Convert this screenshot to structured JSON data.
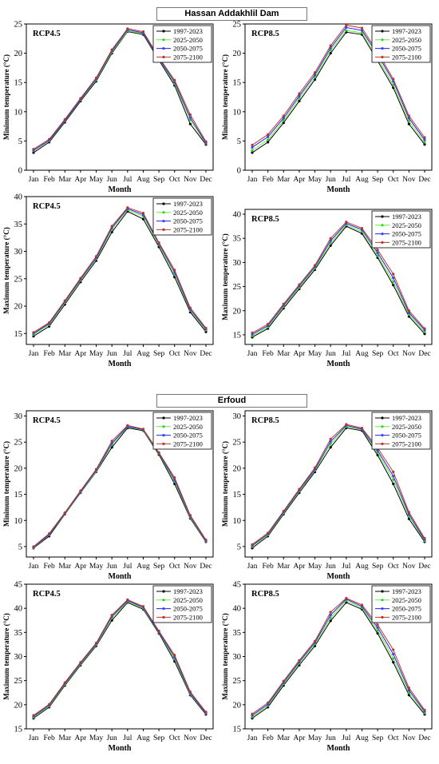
{
  "sections": [
    {
      "title": "Hassan Addakhlil Dam"
    },
    {
      "title": "Erfoud"
    }
  ],
  "chart_data": [
    {
      "type": "line",
      "title": "RCP4.5",
      "xlabel": "Month",
      "ylabel": "Minimum temperature (°C)",
      "categories": [
        "Jan",
        "Feb",
        "Mar",
        "Apr",
        "May",
        "Jun",
        "Jul",
        "Aug",
        "Sep",
        "Oct",
        "Nov",
        "Dec"
      ],
      "ylim": [
        0,
        25
      ],
      "yticks": [
        0,
        5,
        10,
        15,
        20,
        25
      ],
      "legend_position": "top-right",
      "series": [
        {
          "name": "1997-2023",
          "values": [
            3.0,
            4.8,
            8.2,
            11.8,
            15.2,
            20.0,
            23.7,
            23.2,
            18.8,
            14.5,
            7.9,
            4.4
          ]
        },
        {
          "name": "2025-2050",
          "values": [
            3.3,
            5.0,
            8.4,
            12.0,
            15.4,
            20.2,
            23.8,
            23.4,
            19.0,
            14.8,
            8.6,
            4.6
          ]
        },
        {
          "name": "2050-2075",
          "values": [
            3.4,
            5.1,
            8.5,
            12.1,
            15.6,
            20.4,
            24.0,
            23.5,
            19.1,
            15.1,
            9.0,
            4.7
          ]
        },
        {
          "name": "2075-2100",
          "values": [
            3.6,
            5.3,
            8.7,
            12.3,
            15.8,
            20.6,
            24.2,
            23.7,
            19.3,
            15.4,
            9.5,
            4.9
          ]
        }
      ]
    },
    {
      "type": "line",
      "title": "RCP8.5",
      "xlabel": "Month",
      "ylabel": "Minimum temperature (°C)",
      "categories": [
        "Jan",
        "Feb",
        "Mar",
        "Apr",
        "May",
        "Jun",
        "Jul",
        "Aug",
        "Sep",
        "Oct",
        "Nov",
        "Dec"
      ],
      "ylim": [
        0,
        25
      ],
      "yticks": [
        0,
        5,
        10,
        15,
        20,
        25
      ],
      "legend_position": "top-right",
      "series": [
        {
          "name": "1997-2023",
          "values": [
            3.0,
            4.8,
            8.1,
            11.8,
            15.5,
            20.0,
            23.6,
            23.2,
            18.7,
            14.1,
            7.9,
            4.4
          ]
        },
        {
          "name": "2025-2050",
          "values": [
            3.4,
            5.2,
            8.5,
            12.3,
            15.9,
            20.5,
            23.9,
            23.5,
            19.2,
            14.6,
            8.4,
            4.8
          ]
        },
        {
          "name": "2050-2075",
          "values": [
            3.9,
            5.7,
            8.9,
            12.7,
            16.3,
            20.9,
            24.4,
            23.9,
            19.8,
            15.2,
            8.9,
            5.2
          ]
        },
        {
          "name": "2075-2100",
          "values": [
            4.3,
            6.1,
            9.3,
            13.1,
            16.7,
            21.3,
            24.8,
            24.3,
            20.2,
            15.6,
            9.3,
            5.6
          ]
        }
      ]
    },
    {
      "type": "line",
      "title": "RCP4.5",
      "xlabel": "Month",
      "ylabel": "Maximum temperature (°C)",
      "categories": [
        "Jan",
        "Feb",
        "Mar",
        "Apr",
        "May",
        "Jun",
        "Jul",
        "Aug",
        "Sep",
        "Oct",
        "Nov",
        "Dec"
      ],
      "ylim": [
        13,
        40
      ],
      "yticks": [
        15,
        20,
        25,
        30,
        35,
        40
      ],
      "legend_position": "top-right",
      "series": [
        {
          "name": "1997-2023",
          "values": [
            14.5,
            16.3,
            20.3,
            24.4,
            28.3,
            33.5,
            37.3,
            35.9,
            30.8,
            25.3,
            18.9,
            15.3
          ]
        },
        {
          "name": "2025-2050",
          "values": [
            14.8,
            16.6,
            20.6,
            24.7,
            28.6,
            34.0,
            37.6,
            36.4,
            31.2,
            25.8,
            19.2,
            15.6
          ]
        },
        {
          "name": "2050-2075",
          "values": [
            15.0,
            16.8,
            20.8,
            24.9,
            28.8,
            34.3,
            37.8,
            36.7,
            31.4,
            26.2,
            19.4,
            15.8
          ]
        },
        {
          "name": "2075-2100",
          "values": [
            15.2,
            17.0,
            21.0,
            25.1,
            29.1,
            34.6,
            38.0,
            37.0,
            31.6,
            26.6,
            19.7,
            16.0
          ]
        }
      ]
    },
    {
      "type": "line",
      "title": "RCP8.5",
      "xlabel": "Month",
      "ylabel": "Maximum temperature (°C)",
      "categories": [
        "Jan",
        "Feb",
        "Mar",
        "Apr",
        "May",
        "Jun",
        "Jul",
        "Aug",
        "Sep",
        "Oct",
        "Nov",
        "Dec"
      ],
      "ylim": [
        13,
        41
      ],
      "yticks": [
        15,
        20,
        25,
        30,
        35,
        40
      ],
      "legend_position": "top-right",
      "series": [
        {
          "name": "1997-2023",
          "values": [
            14.5,
            16.3,
            20.5,
            24.5,
            28.5,
            33.5,
            37.5,
            36.0,
            31.0,
            25.3,
            18.8,
            15.2
          ]
        },
        {
          "name": "2025-2050",
          "values": [
            14.8,
            16.6,
            20.8,
            24.8,
            28.8,
            34.0,
            37.8,
            36.4,
            31.4,
            26.0,
            19.2,
            15.6
          ]
        },
        {
          "name": "2050-2075",
          "values": [
            15.1,
            16.9,
            21.1,
            25.1,
            29.1,
            34.5,
            38.1,
            36.8,
            32.0,
            26.8,
            19.6,
            16.0
          ]
        },
        {
          "name": "2075-2100",
          "values": [
            15.4,
            17.2,
            21.4,
            25.4,
            29.4,
            35.0,
            38.4,
            37.1,
            32.6,
            27.6,
            20.0,
            16.3
          ]
        }
      ]
    },
    {
      "type": "line",
      "title": "RCP4.5",
      "xlabel": "Month",
      "ylabel": "Minimum temperature (°C)",
      "categories": [
        "Jan",
        "Feb",
        "Mar",
        "Apr",
        "May",
        "Jun",
        "Jul",
        "Aug",
        "Sep",
        "Oct",
        "Nov",
        "Dec"
      ],
      "ylim": [
        3,
        31
      ],
      "yticks": [
        5,
        10,
        15,
        20,
        25,
        30
      ],
      "legend_position": "top-right",
      "series": [
        {
          "name": "1997-2023",
          "values": [
            4.7,
            7.0,
            11.2,
            15.3,
            19.3,
            24.0,
            27.7,
            27.2,
            22.6,
            17.0,
            10.4,
            5.9
          ]
        },
        {
          "name": "2025-2050",
          "values": [
            4.8,
            7.2,
            11.3,
            15.4,
            19.4,
            24.5,
            27.9,
            27.3,
            22.8,
            17.5,
            10.6,
            6.0
          ]
        },
        {
          "name": "2050-2075",
          "values": [
            4.9,
            7.3,
            11.4,
            15.5,
            19.6,
            24.8,
            28.0,
            27.4,
            22.9,
            17.8,
            10.8,
            6.1
          ]
        },
        {
          "name": "2075-2100",
          "values": [
            5.0,
            7.5,
            11.5,
            15.7,
            19.8,
            25.2,
            28.2,
            27.5,
            23.0,
            18.2,
            11.0,
            6.3
          ]
        }
      ]
    },
    {
      "type": "line",
      "title": "RCP8.5",
      "xlabel": "Month",
      "ylabel": "Minimum temperature (°C)",
      "categories": [
        "Jan",
        "Feb",
        "Mar",
        "Apr",
        "May",
        "Jun",
        "Jul",
        "Aug",
        "Sep",
        "Oct",
        "Nov",
        "Dec"
      ],
      "ylim": [
        3,
        31
      ],
      "yticks": [
        5,
        10,
        15,
        20,
        25,
        30
      ],
      "legend_position": "top-right",
      "series": [
        {
          "name": "1997-2023",
          "values": [
            4.7,
            7.0,
            11.2,
            15.3,
            19.3,
            24.0,
            27.7,
            27.2,
            22.5,
            17.0,
            10.3,
            5.9
          ]
        },
        {
          "name": "2025-2050",
          "values": [
            5.0,
            7.2,
            11.4,
            15.6,
            19.6,
            24.6,
            28.0,
            27.4,
            23.0,
            17.8,
            10.8,
            6.1
          ]
        },
        {
          "name": "2050-2075",
          "values": [
            5.2,
            7.4,
            11.6,
            15.8,
            19.8,
            25.1,
            28.2,
            27.5,
            23.4,
            18.5,
            11.2,
            6.3
          ]
        },
        {
          "name": "2075-2100",
          "values": [
            5.4,
            7.6,
            11.8,
            16.0,
            20.1,
            25.6,
            28.4,
            27.7,
            23.9,
            19.3,
            11.6,
            6.6
          ]
        }
      ]
    },
    {
      "type": "line",
      "title": "RCP4.5",
      "xlabel": "Month",
      "ylabel": "Maximum temperature (°C)",
      "categories": [
        "Jan",
        "Feb",
        "Mar",
        "Apr",
        "May",
        "Jun",
        "Jul",
        "Aug",
        "Sep",
        "Oct",
        "Nov",
        "Dec"
      ],
      "ylim": [
        15,
        45
      ],
      "yticks": [
        15,
        20,
        25,
        30,
        35,
        40,
        45
      ],
      "legend_position": "top-right",
      "series": [
        {
          "name": "1997-2023",
          "values": [
            17.2,
            19.5,
            24.0,
            28.2,
            32.2,
            37.5,
            41.2,
            39.8,
            34.8,
            29.0,
            22.0,
            18.0
          ]
        },
        {
          "name": "2025-2050",
          "values": [
            17.4,
            19.7,
            24.2,
            28.4,
            32.4,
            38.0,
            41.4,
            40.0,
            35.0,
            29.5,
            22.2,
            18.2
          ]
        },
        {
          "name": "2050-2075",
          "values": [
            17.6,
            19.9,
            24.4,
            28.6,
            32.6,
            38.3,
            41.6,
            40.2,
            35.1,
            29.9,
            22.4,
            18.3
          ]
        },
        {
          "name": "2075-2100",
          "values": [
            17.8,
            20.1,
            24.6,
            28.8,
            32.8,
            38.6,
            41.8,
            40.4,
            35.3,
            30.3,
            22.7,
            18.5
          ]
        }
      ]
    },
    {
      "type": "line",
      "title": "RCP8.5",
      "xlabel": "Month",
      "ylabel": "Maximum temperature (°C)",
      "categories": [
        "Jan",
        "Feb",
        "Mar",
        "Apr",
        "May",
        "Jun",
        "Jul",
        "Aug",
        "Sep",
        "Oct",
        "Nov",
        "Dec"
      ],
      "ylim": [
        15,
        45
      ],
      "yticks": [
        15,
        20,
        25,
        30,
        35,
        40,
        45
      ],
      "legend_position": "top-right",
      "series": [
        {
          "name": "1997-2023",
          "values": [
            17.2,
            19.5,
            24.0,
            28.2,
            32.2,
            37.4,
            41.2,
            39.8,
            34.8,
            28.8,
            22.0,
            18.0
          ]
        },
        {
          "name": "2025-2050",
          "values": [
            17.5,
            19.8,
            24.3,
            28.6,
            32.6,
            38.0,
            41.6,
            40.1,
            35.4,
            29.6,
            22.5,
            18.3
          ]
        },
        {
          "name": "2050-2075",
          "values": [
            17.8,
            20.1,
            24.6,
            28.9,
            32.9,
            38.6,
            41.9,
            40.4,
            36.0,
            30.5,
            23.0,
            18.6
          ]
        },
        {
          "name": "2075-2100",
          "values": [
            18.1,
            20.4,
            24.9,
            29.2,
            33.2,
            39.2,
            42.1,
            40.7,
            36.6,
            31.4,
            23.5,
            18.9
          ]
        }
      ]
    }
  ]
}
